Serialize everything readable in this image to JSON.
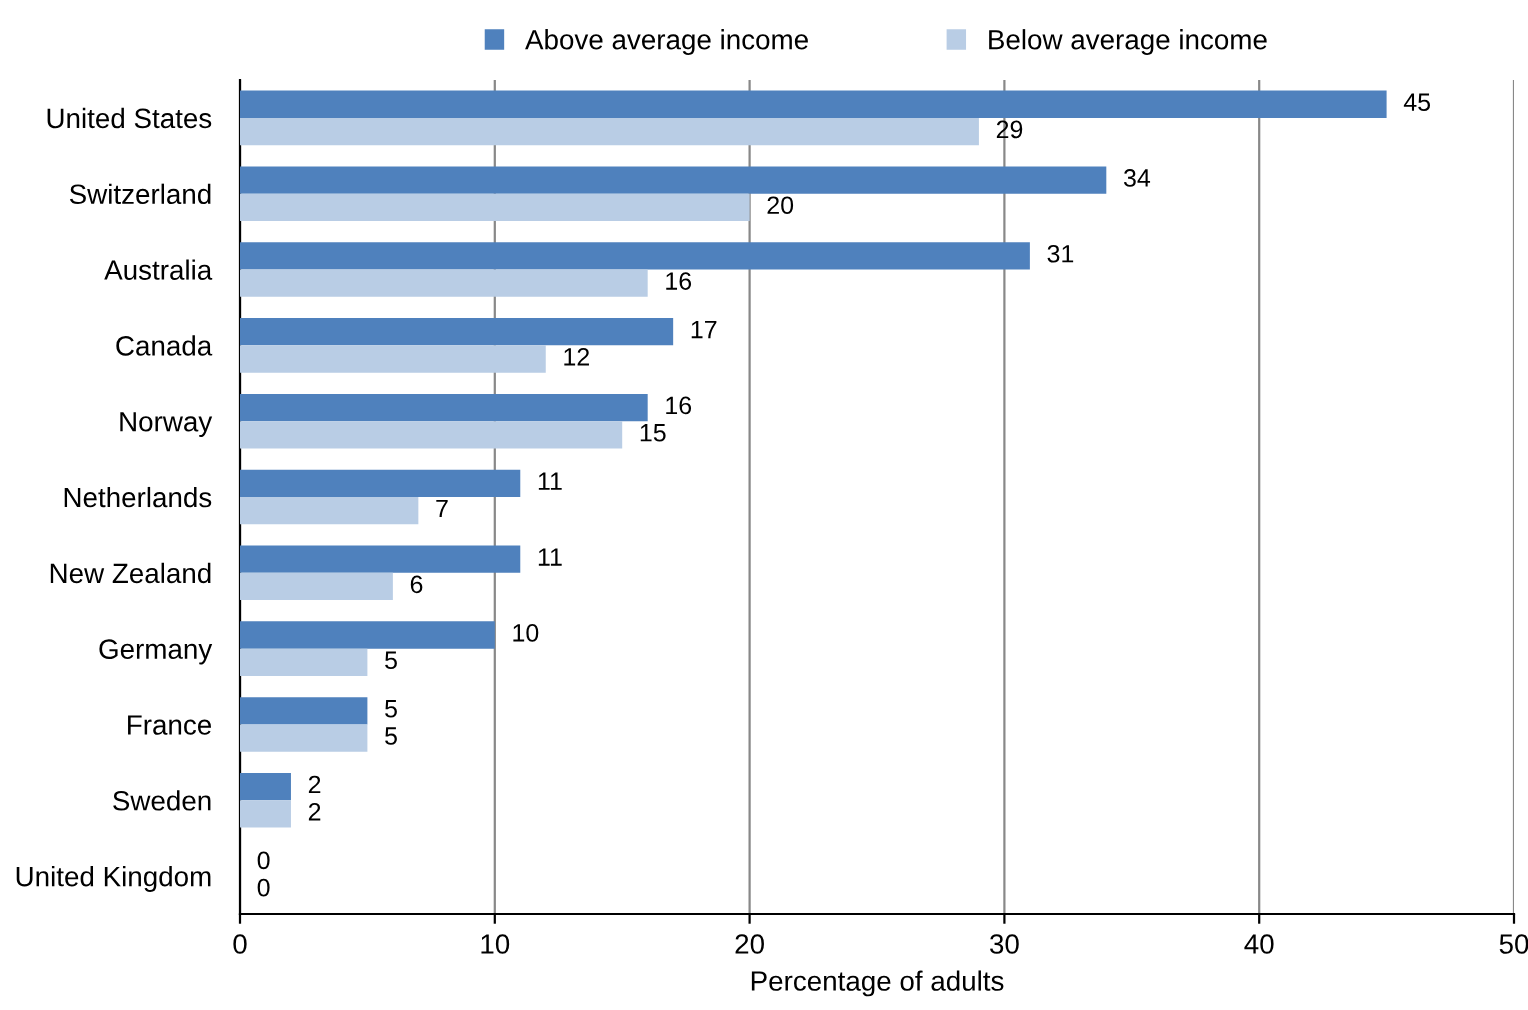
{
  "chart_data": {
    "type": "bar",
    "orientation": "horizontal",
    "xlabel": "Percentage of adults",
    "categories": [
      "United States",
      "Switzerland",
      "Australia",
      "Canada",
      "Norway",
      "Netherlands",
      "New Zealand",
      "Germany",
      "France",
      "Sweden",
      "United Kingdom"
    ],
    "series": [
      {
        "name": "Above average income",
        "color": "#4f81bd",
        "values": [
          45,
          34,
          31,
          17,
          16,
          11,
          11,
          10,
          5,
          2,
          0
        ]
      },
      {
        "name": "Below average income",
        "color": "#b9cde5",
        "values": [
          29,
          20,
          16,
          12,
          15,
          7,
          6,
          5,
          5,
          2,
          0
        ]
      }
    ],
    "xlim": [
      0,
      50
    ],
    "xticks": [
      0,
      10,
      20,
      30,
      40,
      50
    ],
    "grid": "x",
    "legend": "top",
    "data_labels": true
  }
}
